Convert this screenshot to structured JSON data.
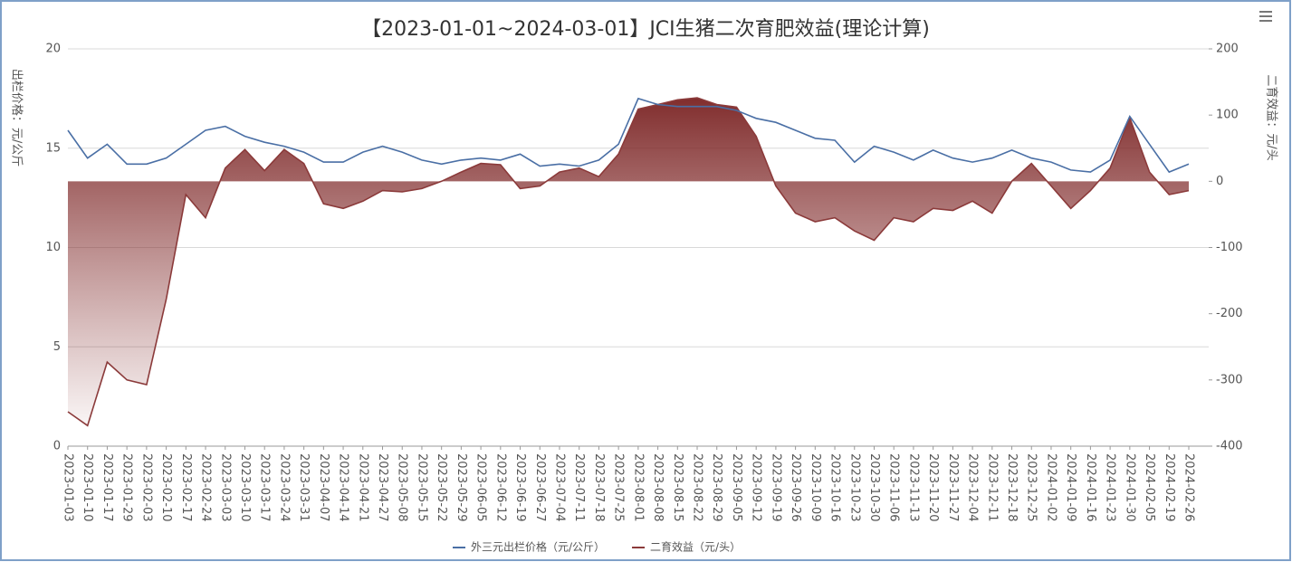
{
  "chart_data": {
    "type": "line",
    "title": "【2023-01-01~2024-03-01】JCI生猪二次育肥效益(理论计算)",
    "y_label": "出栏价格：元/公斤",
    "y2_label": "二育效益：元/头",
    "categories": [
      "2023-01-03",
      "2023-01-10",
      "2023-01-17",
      "2023-01-29",
      "2023-02-03",
      "2023-02-10",
      "2023-02-17",
      "2023-02-24",
      "2023-03-03",
      "2023-03-10",
      "2023-03-17",
      "2023-03-24",
      "2023-03-31",
      "2023-04-07",
      "2023-04-14",
      "2023-04-21",
      "2023-04-27",
      "2023-05-08",
      "2023-05-15",
      "2023-05-22",
      "2023-05-29",
      "2023-06-05",
      "2023-06-12",
      "2023-06-19",
      "2023-06-27",
      "2023-07-04",
      "2023-07-11",
      "2023-07-18",
      "2023-07-25",
      "2023-08-01",
      "2023-08-08",
      "2023-08-15",
      "2023-08-22",
      "2023-08-29",
      "2023-09-05",
      "2023-09-12",
      "2023-09-19",
      "2023-09-26",
      "2023-10-09",
      "2023-10-16",
      "2023-10-23",
      "2023-10-30",
      "2023-11-06",
      "2023-11-13",
      "2023-11-20",
      "2023-11-27",
      "2023-12-04",
      "2023-12-11",
      "2023-12-18",
      "2023-12-25",
      "2024-01-02",
      "2024-01-09",
      "2024-01-16",
      "2024-01-23",
      "2024-01-30",
      "2024-02-05",
      "2024-02-19",
      "2024-02-26"
    ],
    "series": [
      {
        "name": "外三元出栏价格（元/公斤）",
        "color": "#4a6fa5",
        "values": [
          15.9,
          14.5,
          15.2,
          14.2,
          14.2,
          14.5,
          15.2,
          15.9,
          16.1,
          15.6,
          15.3,
          15.1,
          14.8,
          14.3,
          14.3,
          14.8,
          15.1,
          14.8,
          14.4,
          14.2,
          14.4,
          14.5,
          14.4,
          14.7,
          14.1,
          14.2,
          14.1,
          14.4,
          15.2,
          17.5,
          17.2,
          17.1,
          17.1,
          17.1,
          16.9,
          16.5,
          16.3,
          15.9,
          15.5,
          15.4,
          14.3,
          15.1,
          14.8,
          14.4,
          14.9,
          14.5,
          14.3,
          14.5,
          14.9,
          14.5,
          14.3,
          13.9,
          13.8,
          14.4,
          16.6,
          15.2,
          13.8,
          14.2
        ]
      },
      {
        "name": "二育效益（元/头）",
        "color": "#8b3a3a",
        "axis": "y2",
        "area": true,
        "values": [
          -348,
          -369,
          -273,
          -300,
          -307,
          -178,
          -20,
          -55,
          20,
          48,
          16,
          48,
          27,
          -34,
          -41,
          -30,
          -14,
          -16,
          -11,
          0,
          14,
          27,
          25,
          -11,
          -7,
          14,
          20,
          7,
          41,
          109,
          116,
          123,
          126,
          116,
          112,
          68,
          -7,
          -48,
          -61,
          -55,
          -75,
          -89,
          -55,
          -61,
          -41,
          -44,
          -30,
          -48,
          0,
          27,
          -7,
          -41,
          -14,
          20,
          96,
          14,
          -20,
          -14
        ]
      }
    ],
    "ylim": [
      0,
      20
    ],
    "yticks": [
      0,
      5,
      10,
      15,
      20
    ],
    "y2lim": [
      -400,
      200
    ],
    "y2ticks": [
      -400,
      -300,
      -200,
      -100,
      0,
      100,
      200
    ],
    "grid": true,
    "legend": "bottom"
  }
}
